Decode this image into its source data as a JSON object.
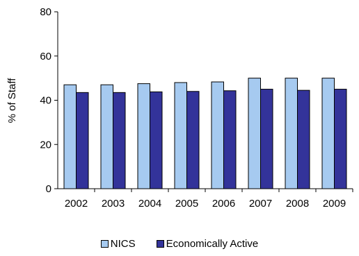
{
  "chart_data": {
    "type": "bar",
    "categories": [
      "2002",
      "2003",
      "2004",
      "2005",
      "2006",
      "2007",
      "2008",
      "2009"
    ],
    "series": [
      {
        "name": "NICS",
        "color": "#a6caf0",
        "values": [
          47,
          47,
          47.5,
          48,
          48.3,
          50,
          50,
          50
        ]
      },
      {
        "name": "Economically Active",
        "color": "#33339a",
        "values": [
          43.5,
          43.5,
          43.8,
          44,
          44.3,
          45,
          44.5,
          45
        ]
      }
    ],
    "ylabel": "% of Staff",
    "xlabel": "",
    "ylim": [
      0,
      80
    ],
    "yticks": [
      0,
      20,
      40,
      60,
      80
    ],
    "grid": false,
    "legend_position": "bottom"
  }
}
